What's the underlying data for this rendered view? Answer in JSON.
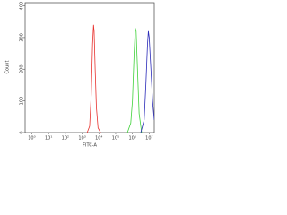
{
  "chart_data": {
    "type": "line",
    "xlabel": "FITC-A",
    "ylabel": "Count",
    "xscale": "log",
    "xlim": [
      0.4,
      20000000
    ],
    "ylim": [
      0,
      410
    ],
    "xticks": [
      {
        "value": 1,
        "label": "10⁰"
      },
      {
        "value": 10,
        "label": "10¹"
      },
      {
        "value": 100,
        "label": "10²"
      },
      {
        "value": 1000,
        "label": "10³"
      },
      {
        "value": 10000,
        "label": "10⁴"
      },
      {
        "value": 100000,
        "label": "10⁵"
      },
      {
        "value": 1000000,
        "label": "10⁶"
      },
      {
        "value": 10000000,
        "label": "10⁷"
      }
    ],
    "yticks": [
      0,
      100,
      200,
      300,
      400
    ],
    "series": [
      {
        "color": "#e8322e",
        "x": [
          2000,
          2800,
          3500,
          4200,
          4800,
          5200,
          6000,
          7100,
          8900,
          12600
        ],
        "values": [
          0,
          20,
          120,
          280,
          340,
          320,
          200,
          80,
          15,
          0
        ]
      },
      {
        "color": "#3fd23a",
        "x": [
          500000,
          794000,
          1000000,
          1260000,
          1480000,
          1660000,
          2000000,
          2510000,
          3550000
        ],
        "values": [
          0,
          30,
          100,
          250,
          330,
          320,
          200,
          60,
          0
        ]
      },
      {
        "color": "#2a2ab8",
        "x": [
          3160000,
          5010000,
          6310000,
          7940000,
          8910000,
          10000000,
          12600000,
          15800000,
          20000000
        ],
        "values": [
          0,
          40,
          150,
          280,
          320,
          300,
          200,
          100,
          40
        ]
      }
    ]
  }
}
